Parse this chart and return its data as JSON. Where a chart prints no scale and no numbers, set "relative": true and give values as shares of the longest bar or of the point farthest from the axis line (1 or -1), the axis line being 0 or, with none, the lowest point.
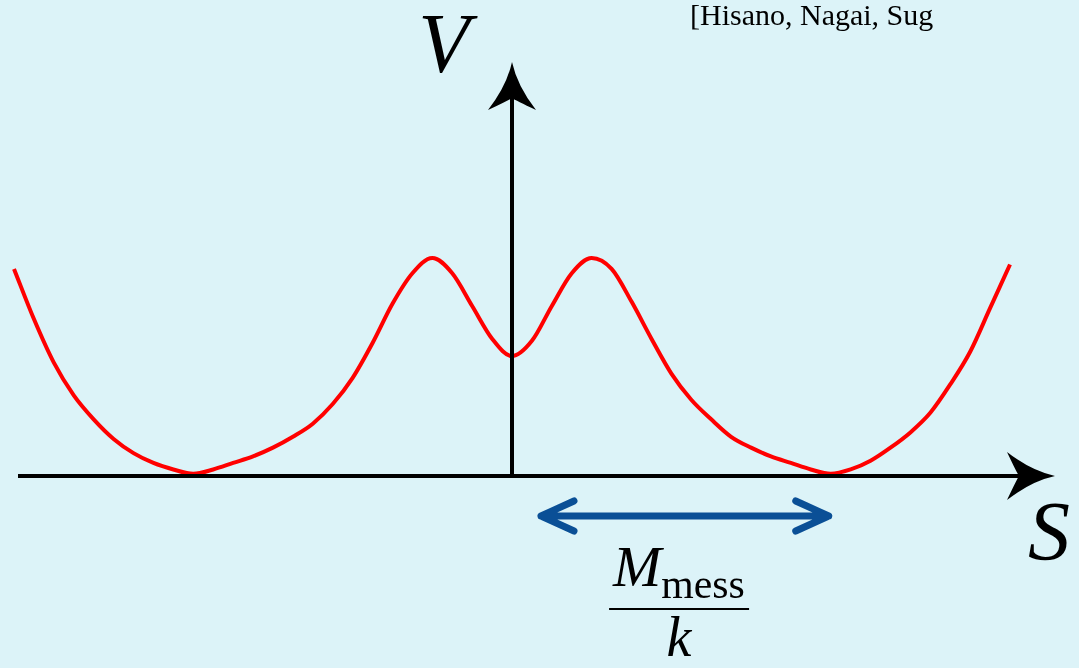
{
  "chart_data": {
    "type": "line",
    "xlabel": "S",
    "ylabel": "V",
    "annotations": [
      "[Hisano, Nagai, Sug",
      "M$_{mess}$",
      "k"
    ],
    "categories": [
      null,
      null,
      null,
      null,
      null,
      null,
      null,
      null,
      null,
      null,
      null,
      null,
      null,
      null,
      null,
      null,
      null,
      null,
      null,
      null,
      null,
      null,
      null,
      null,
      null,
      null,
      null,
      null,
      null,
      null,
      null,
      null,
      null,
      null,
      null,
      null,
      null,
      null,
      null,
      null,
      null,
      null,
      null,
      null,
      null,
      null,
      null,
      null,
      null,
      null,
      null
    ],
    "values": [
      0.95,
      0.72,
      0.52,
      0.37,
      0.26,
      0.17,
      0.105,
      0.06,
      0.03,
      0.01,
      0.03,
      0.06,
      0.09,
      0.13,
      0.18,
      0.24,
      0.33,
      0.45,
      0.61,
      0.79,
      0.93,
      1.0,
      0.93,
      0.78,
      0.63,
      0.55,
      0.62,
      0.78,
      0.93,
      1.0,
      0.95,
      0.8,
      0.63,
      0.47,
      0.35,
      0.26,
      0.18,
      0.13,
      0.09,
      0.06,
      0.03,
      0.01,
      0.03,
      0.07,
      0.13,
      0.2,
      0.29,
      0.42,
      0.57,
      0.77,
      0.97
    ],
    "color": "#ff0000",
    "relative": true,
    "tick_labels": false
  }
}
